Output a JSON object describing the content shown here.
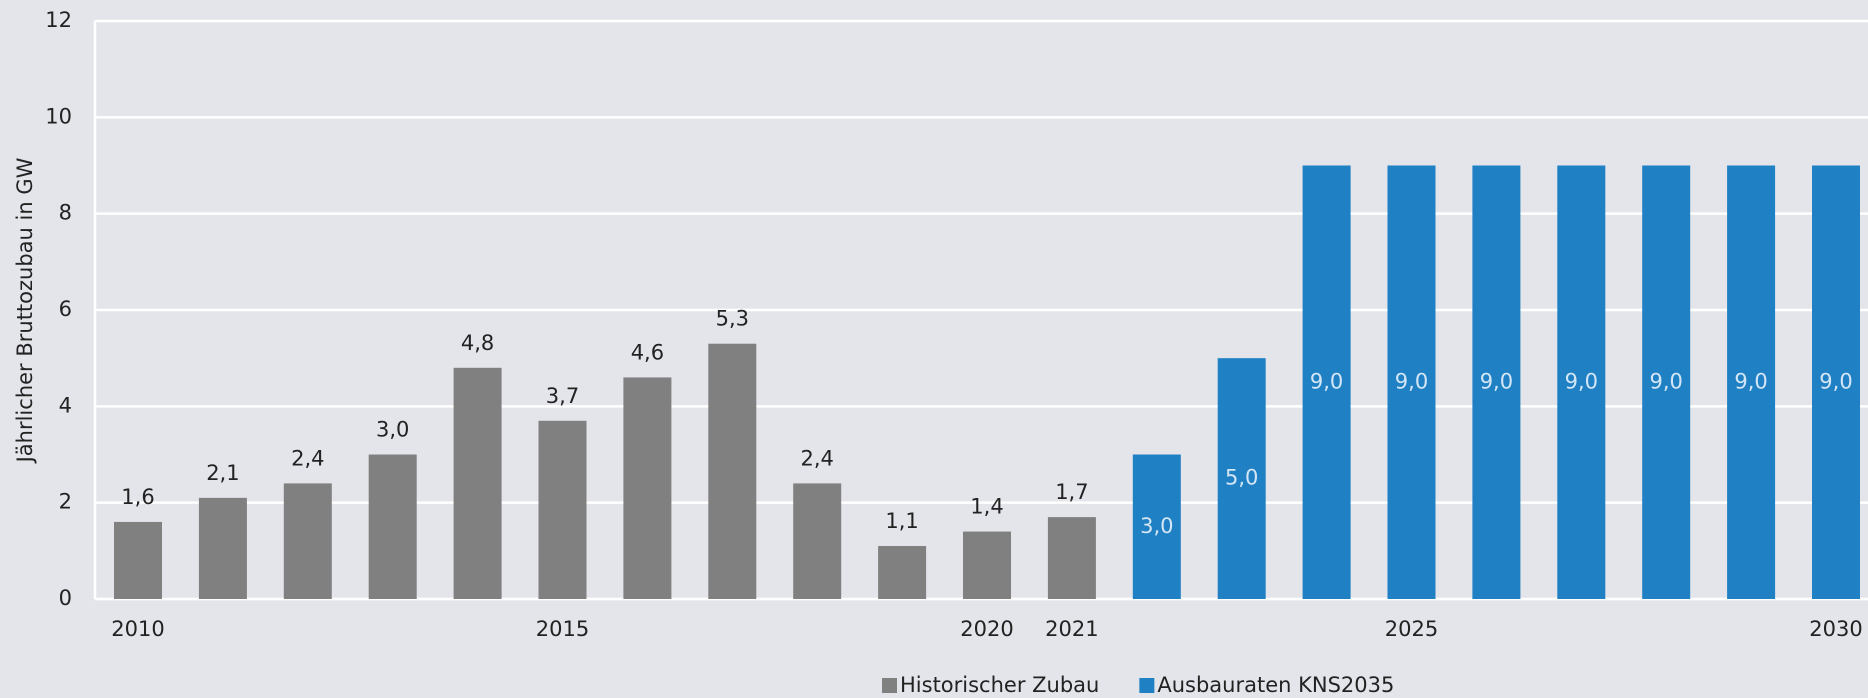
{
  "chart_data": {
    "type": "bar",
    "y_label": "Jährlicher Bruttozubau in GW",
    "categories": [
      "2010",
      null,
      null,
      null,
      null,
      "2015",
      null,
      null,
      null,
      null,
      "2020",
      "2021",
      null,
      null,
      null,
      "2025",
      null,
      null,
      null,
      null,
      "2030"
    ],
    "series": [
      {
        "name": "Historischer Zubau",
        "color": "#808080",
        "label_position": "above",
        "values": [
          1.6,
          2.1,
          2.4,
          3.0,
          4.8,
          3.7,
          4.6,
          5.3,
          2.4,
          1.1,
          1.4,
          1.7,
          null,
          null,
          null,
          null,
          null,
          null,
          null,
          null,
          null
        ],
        "value_labels": [
          "1,6",
          "2,1",
          "2,4",
          "3,0",
          "4,8",
          "3,7",
          "4,6",
          "5,3",
          "2,4",
          "1,1",
          "1,4",
          "1,7",
          null,
          null,
          null,
          null,
          null,
          null,
          null,
          null,
          null
        ]
      },
      {
        "name": "Ausbauraten KNS2035",
        "color": "#1f80c3",
        "label_position": "inside",
        "values": [
          null,
          null,
          null,
          null,
          null,
          null,
          null,
          null,
          null,
          null,
          null,
          null,
          3.0,
          5.0,
          9.0,
          9.0,
          9.0,
          9.0,
          9.0,
          9.0,
          9.0
        ],
        "value_labels": [
          null,
          null,
          null,
          null,
          null,
          null,
          null,
          null,
          null,
          null,
          null,
          null,
          "3,0",
          "5,0",
          "9,0",
          "9,0",
          "9,0",
          "9,0",
          "9,0",
          "9,0",
          "9,0"
        ]
      }
    ],
    "ylim": [
      0,
      12
    ],
    "yticks": [
      0,
      2,
      4,
      6,
      8,
      10,
      12
    ],
    "grid": true,
    "legend": "bottom"
  }
}
